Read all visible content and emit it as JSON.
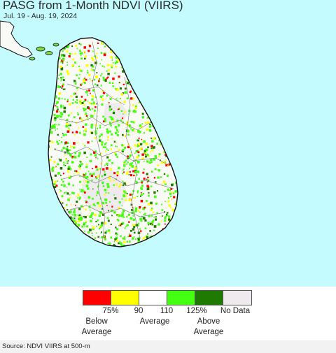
{
  "title": "PASG from 1-Month NDVI (VIIRS)",
  "date_range": "Jul. 19 - Aug. 19, 2024",
  "colors": {
    "ocean": "#c4fbff",
    "land_base": "#f9f9f5",
    "no_data": "#eeeaee",
    "district_border": "#8a8a8a",
    "coast": "#111111"
  },
  "legend": {
    "swatches": [
      {
        "color": "#ff0000",
        "meaning": "below 75%"
      },
      {
        "color": "#ffff00",
        "meaning": "75-90%"
      },
      {
        "color": "#ffffff",
        "meaning": "90-110%"
      },
      {
        "color": "#44ff11",
        "meaning": "110-125%"
      },
      {
        "color": "#1e7a00",
        "meaning": "above 125%"
      },
      {
        "color": "#eeeaee",
        "meaning": "no data"
      }
    ],
    "ticks": [
      "75%",
      "90",
      "110",
      "125%",
      "No Data"
    ],
    "categories": [
      {
        "line1": "Below",
        "line2": "Average"
      },
      {
        "line1": "",
        "line2": "Average"
      },
      {
        "line1": "Above",
        "line2": "Average"
      }
    ]
  },
  "source": "Source: NDVI VIIRS at 500-m"
}
